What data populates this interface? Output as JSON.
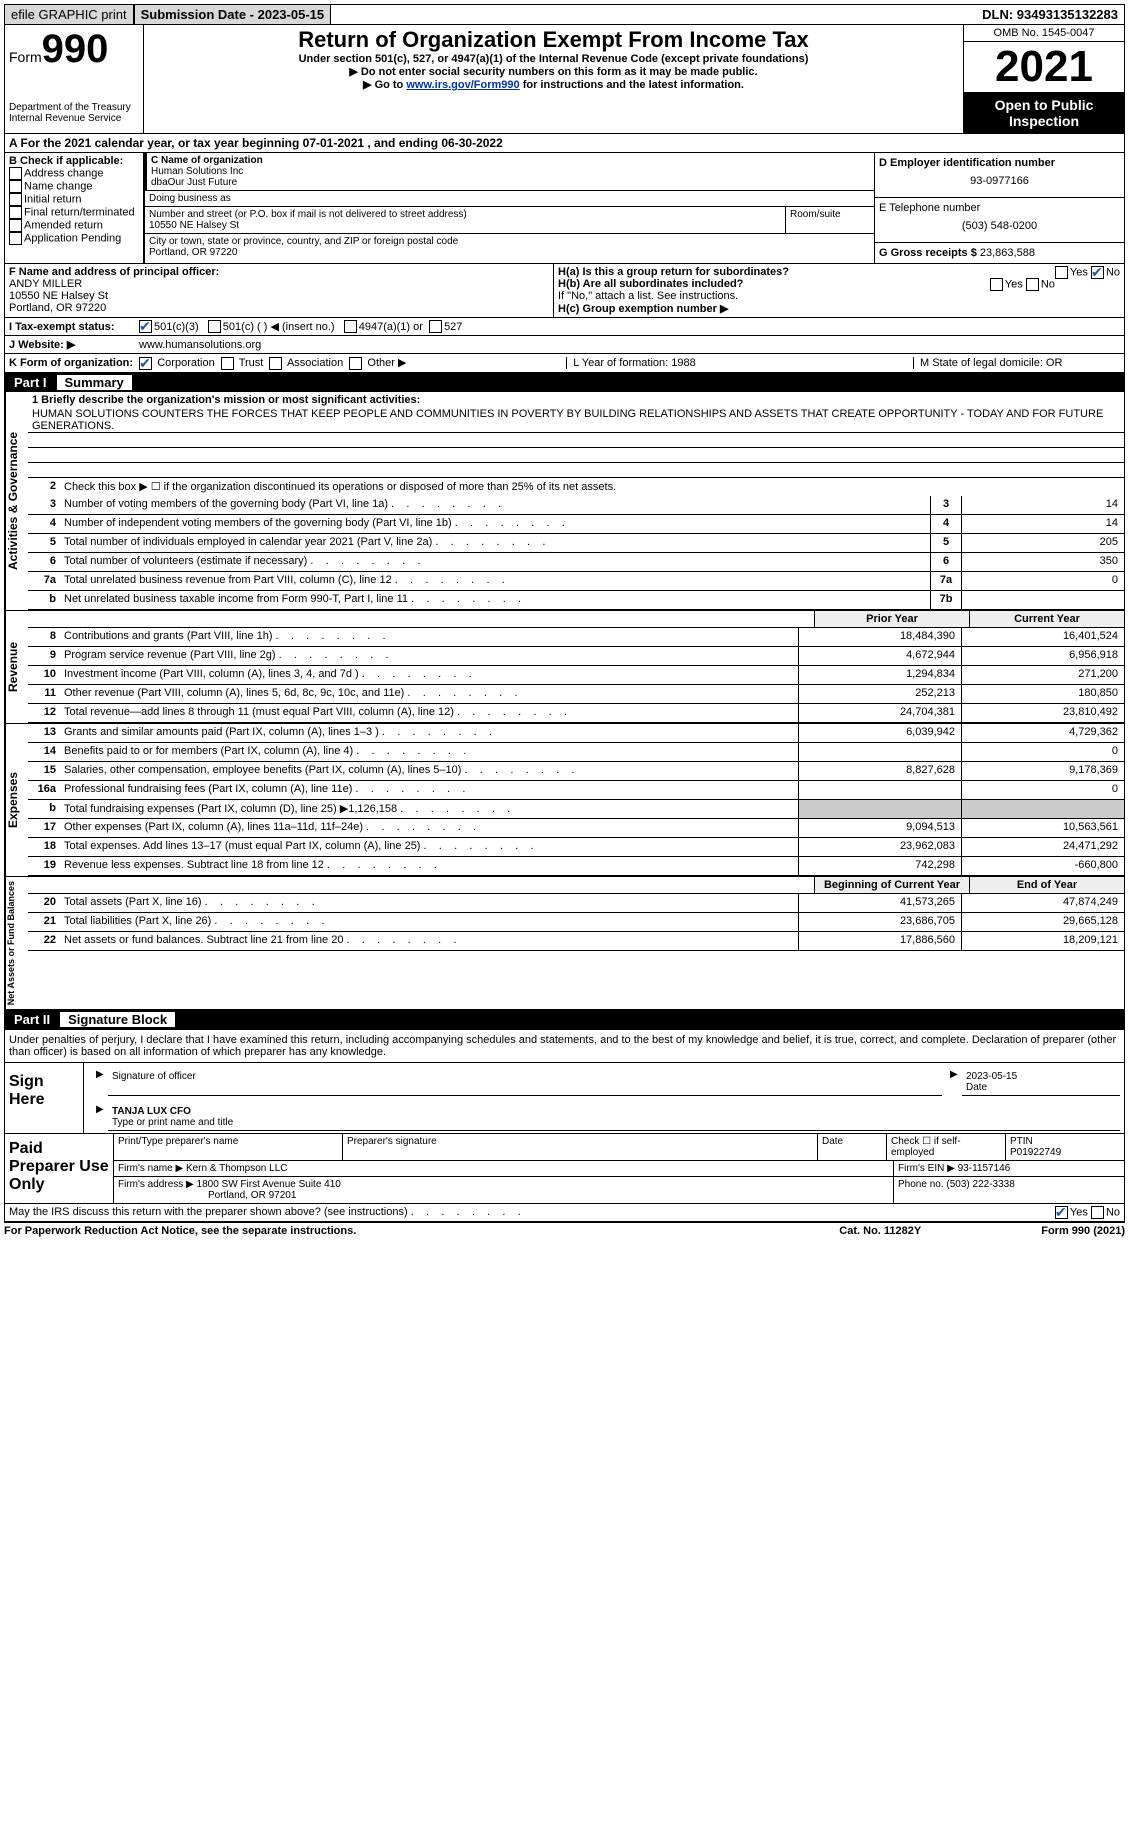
{
  "top": {
    "efile": "efile GRAPHIC print",
    "submission": "Submission Date - 2023-05-15",
    "dln": "DLN: 93493135132283"
  },
  "header": {
    "form_label": "Form",
    "form_num": "990",
    "title": "Return of Organization Exempt From Income Tax",
    "sub1": "Under section 501(c), 527, or 4947(a)(1) of the Internal Revenue Code (except private foundations)",
    "sub2": "▶ Do not enter social security numbers on this form as it may be made public.",
    "sub3_pre": "▶ Go to ",
    "sub3_link": "www.irs.gov/Form990",
    "sub3_post": " for instructions and the latest information.",
    "dept": "Department of the Treasury\nInternal Revenue Service",
    "omb": "OMB No. 1545-0047",
    "year": "2021",
    "open": "Open to Public Inspection"
  },
  "rowA": "A For the 2021 calendar year, or tax year beginning 07-01-2021    , and ending 06-30-2022",
  "B": {
    "label": "B Check if applicable:",
    "opts": [
      "Address change",
      "Name change",
      "Initial return",
      "Final return/terminated",
      "Amended return",
      "Application Pending"
    ]
  },
  "C": {
    "label": "C Name of organization",
    "name1": "Human Solutions Inc",
    "name2": "dbaOur Just Future",
    "dba_label": "Doing business as",
    "addr_label": "Number and street (or P.O. box if mail is not delivered to street address)",
    "room": "Room/suite",
    "addr": "10550 NE Halsey St",
    "city_label": "City or town, state or province, country, and ZIP or foreign postal code",
    "city": "Portland, OR  97220"
  },
  "D": {
    "label": "D Employer identification number",
    "val": "93-0977166"
  },
  "E": {
    "label": "E Telephone number",
    "val": "(503) 548-0200"
  },
  "G": {
    "label": "G Gross receipts $",
    "val": "23,863,588"
  },
  "F": {
    "label": "F  Name and address of principal officer:",
    "name": "ANDY MILLER",
    "addr1": "10550 NE Halsey St",
    "addr2": "Portland, OR  97220"
  },
  "H": {
    "a": "H(a)  Is this a group return for subordinates?",
    "b": "H(b)  Are all subordinates included?",
    "bnote": "If \"No,\" attach a list. See instructions.",
    "c": "H(c)  Group exemption number ▶"
  },
  "I": {
    "label": "I   Tax-exempt status:",
    "o1": "501(c)(3)",
    "o2": "501(c) (  ) ◀ (insert no.)",
    "o3": "4947(a)(1) or",
    "o4": "527"
  },
  "J": {
    "label": "J   Website: ▶",
    "val": "www.humansolutions.org"
  },
  "K": {
    "label": "K Form of organization:",
    "o1": "Corporation",
    "o2": "Trust",
    "o3": "Association",
    "o4": "Other ▶",
    "L": "L Year of formation: 1988",
    "M": "M State of legal domicile: OR"
  },
  "part1": {
    "num": "Part I",
    "title": "Summary"
  },
  "mission_label": "1   Briefly describe the organization's mission or most significant activities:",
  "mission": "HUMAN SOLUTIONS COUNTERS THE FORCES THAT KEEP PEOPLE AND COMMUNITIES IN POVERTY BY BUILDING RELATIONSHIPS AND ASSETS THAT CREATE OPPORTUNITY - TODAY AND FOR FUTURE GENERATIONS.",
  "line2": "Check this box ▶ ☐  if the organization discontinued its operations or disposed of more than 25% of its net assets.",
  "gov_lines": [
    {
      "n": "3",
      "t": "Number of voting members of the governing body (Part VI, line 1a)",
      "b": "3",
      "v": "14"
    },
    {
      "n": "4",
      "t": "Number of independent voting members of the governing body (Part VI, line 1b)",
      "b": "4",
      "v": "14"
    },
    {
      "n": "5",
      "t": "Total number of individuals employed in calendar year 2021 (Part V, line 2a)",
      "b": "5",
      "v": "205"
    },
    {
      "n": "6",
      "t": "Total number of volunteers (estimate if necessary)",
      "b": "6",
      "v": "350"
    },
    {
      "n": "7a",
      "t": "Total unrelated business revenue from Part VIII, column (C), line 12",
      "b": "7a",
      "v": "0"
    },
    {
      "n": "b",
      "t": "Net unrelated business taxable income from Form 990-T, Part I, line 11",
      "b": "7b",
      "v": ""
    }
  ],
  "rev_hdr": {
    "py": "Prior Year",
    "cy": "Current Year"
  },
  "rev_lines": [
    {
      "n": "8",
      "t": "Contributions and grants (Part VIII, line 1h)",
      "p": "18,484,390",
      "c": "16,401,524"
    },
    {
      "n": "9",
      "t": "Program service revenue (Part VIII, line 2g)",
      "p": "4,672,944",
      "c": "6,956,918"
    },
    {
      "n": "10",
      "t": "Investment income (Part VIII, column (A), lines 3, 4, and 7d )",
      "p": "1,294,834",
      "c": "271,200"
    },
    {
      "n": "11",
      "t": "Other revenue (Part VIII, column (A), lines 5, 6d, 8c, 9c, 10c, and 11e)",
      "p": "252,213",
      "c": "180,850"
    },
    {
      "n": "12",
      "t": "Total revenue—add lines 8 through 11 (must equal Part VIII, column (A), line 12)",
      "p": "24,704,381",
      "c": "23,810,492"
    }
  ],
  "exp_lines": [
    {
      "n": "13",
      "t": "Grants and similar amounts paid (Part IX, column (A), lines 1–3 )",
      "p": "6,039,942",
      "c": "4,729,362"
    },
    {
      "n": "14",
      "t": "Benefits paid to or for members (Part IX, column (A), line 4)",
      "p": "",
      "c": "0"
    },
    {
      "n": "15",
      "t": "Salaries, other compensation, employee benefits (Part IX, column (A), lines 5–10)",
      "p": "8,827,628",
      "c": "9,178,369"
    },
    {
      "n": "16a",
      "t": "Professional fundraising fees (Part IX, column (A), line 11e)",
      "p": "",
      "c": "0"
    },
    {
      "n": "b",
      "t": "Total fundraising expenses (Part IX, column (D), line 25) ▶1,126,158",
      "p": "shade",
      "c": "shade"
    },
    {
      "n": "17",
      "t": "Other expenses (Part IX, column (A), lines 11a–11d, 11f–24e)",
      "p": "9,094,513",
      "c": "10,563,561"
    },
    {
      "n": "18",
      "t": "Total expenses. Add lines 13–17 (must equal Part IX, column (A), line 25)",
      "p": "23,962,083",
      "c": "24,471,292"
    },
    {
      "n": "19",
      "t": "Revenue less expenses. Subtract line 18 from line 12",
      "p": "742,298",
      "c": "-660,800"
    }
  ],
  "na_hdr": {
    "py": "Beginning of Current Year",
    "cy": "End of Year"
  },
  "na_lines": [
    {
      "n": "20",
      "t": "Total assets (Part X, line 16)",
      "p": "41,573,265",
      "c": "47,874,249"
    },
    {
      "n": "21",
      "t": "Total liabilities (Part X, line 26)",
      "p": "23,686,705",
      "c": "29,665,128"
    },
    {
      "n": "22",
      "t": "Net assets or fund balances. Subtract line 21 from line 20",
      "p": "17,886,560",
      "c": "18,209,121"
    }
  ],
  "vlabels": {
    "gov": "Activities & Governance",
    "rev": "Revenue",
    "exp": "Expenses",
    "na": "Net Assets or Fund Balances"
  },
  "part2": {
    "num": "Part II",
    "title": "Signature Block"
  },
  "decl": "Under penalties of perjury, I declare that I have examined this return, including accompanying schedules and statements, and to the best of my knowledge and belief, it is true, correct, and complete. Declaration of preparer (other than officer) is based on all information of which preparer has any knowledge.",
  "sign": {
    "here": "Sign Here",
    "sig_label": "Signature of officer",
    "date": "2023-05-15",
    "date_label": "Date",
    "name": "TANJA LUX  CFO",
    "name_label": "Type or print name and title"
  },
  "paid": {
    "label": "Paid Preparer Use Only",
    "h1": "Print/Type preparer's name",
    "h2": "Preparer's signature",
    "h3": "Date",
    "h4": "Check ☐ if self-employed",
    "h5": "PTIN",
    "ptin": "P01922749",
    "firm_label": "Firm's name    ▶",
    "firm": "Kern & Thompson LLC",
    "ein_label": "Firm's EIN ▶",
    "ein": "93-1157146",
    "addr_label": "Firm's address ▶",
    "addr1": "1800 SW First Avenue Suite 410",
    "addr2": "Portland, OR  97201",
    "phone_label": "Phone no.",
    "phone": "(503) 222-3338"
  },
  "discuss": "May the IRS discuss this return with the preparer shown above? (see instructions)",
  "foot": {
    "l": "For Paperwork Reduction Act Notice, see the separate instructions.",
    "c": "Cat. No. 11282Y",
    "r": "Form 990 (2021)"
  }
}
